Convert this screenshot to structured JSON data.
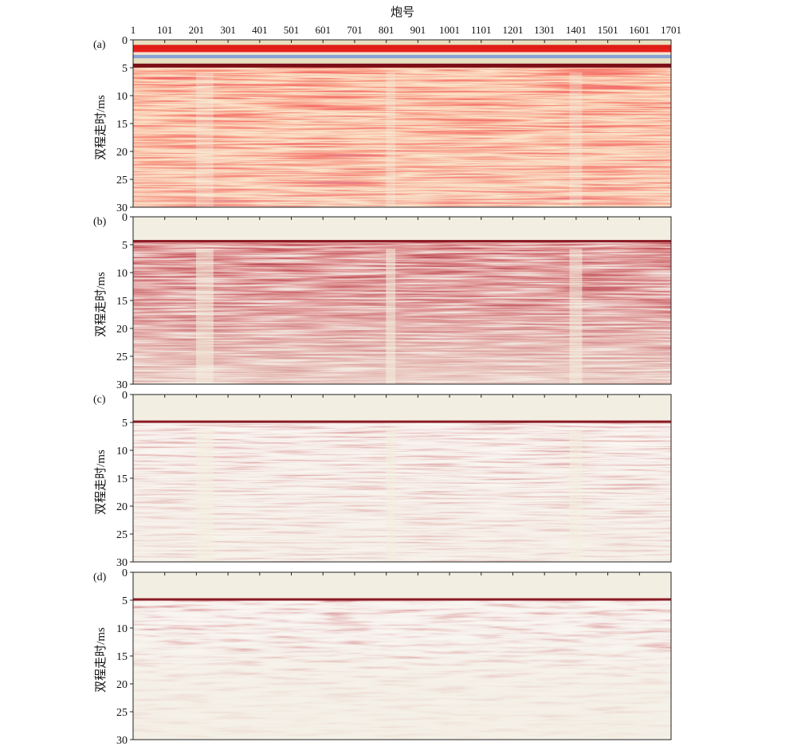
{
  "chart_data": {
    "type": "heatmap",
    "x_title": "炮号",
    "y_title": "双程走时/ms",
    "x_ticks": [
      1,
      101,
      201,
      301,
      401,
      501,
      601,
      701,
      801,
      901,
      1001,
      1101,
      1201,
      1301,
      1401,
      1501,
      1601,
      1701
    ],
    "y_ticks": [
      0,
      5,
      10,
      15,
      20,
      25,
      30
    ],
    "xlim": [
      1,
      1701
    ],
    "ylim": [
      0,
      30
    ],
    "panels": [
      {
        "label": "(a)",
        "seafloor_ms": 4.4,
        "energy_decay": "low",
        "color_scale": "bright-red-blue"
      },
      {
        "label": "(b)",
        "seafloor_ms": 4.3,
        "energy_decay": "medium",
        "color_scale": "dark-red"
      },
      {
        "label": "(c)",
        "seafloor_ms": 4.8,
        "energy_decay": "medium",
        "color_scale": "pale-red"
      },
      {
        "label": "(d)",
        "seafloor_ms": 4.8,
        "energy_decay": "high",
        "color_scale": "pale-red"
      }
    ],
    "colors": {
      "strong": "#8b0d1e",
      "red": "#e8201e",
      "trough": "#3a5b9b",
      "background": "#f1ecdf"
    }
  }
}
